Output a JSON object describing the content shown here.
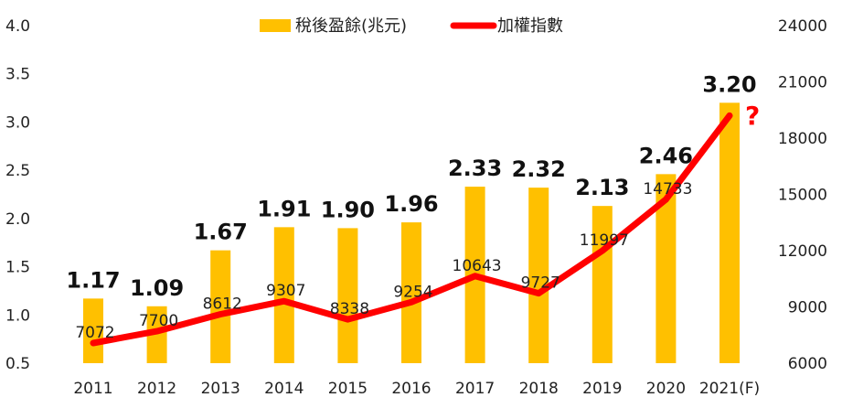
{
  "chart_data": {
    "type": "bar+line",
    "categories": [
      "2011",
      "2012",
      "2013",
      "2014",
      "2015",
      "2016",
      "2017",
      "2018",
      "2019",
      "2020",
      "2021(F)"
    ],
    "series": [
      {
        "name": "稅後盈餘(兆元)",
        "type": "bar",
        "axis": "left",
        "color": "#FFC000",
        "values": [
          1.17,
          1.09,
          1.67,
          1.91,
          1.9,
          1.96,
          2.33,
          2.32,
          2.13,
          2.46,
          3.2
        ],
        "labels": [
          "1.17",
          "1.09",
          "1.67",
          "1.91",
          "1.90",
          "1.96",
          "2.33",
          "2.32",
          "2.13",
          "2.46",
          "3.20"
        ]
      },
      {
        "name": "加權指數",
        "type": "line",
        "axis": "right",
        "color": "#FF0000",
        "values": [
          7072,
          7700,
          8612,
          9307,
          8338,
          9254,
          10643,
          9727,
          11997,
          14733,
          19200
        ],
        "labels": [
          "7072",
          "7700",
          "8612",
          "9307",
          "8338",
          "9254",
          "10643",
          "9727",
          "11997",
          "14733",
          ""
        ]
      }
    ],
    "annotation": {
      "text": "?",
      "color": "#FF0000"
    },
    "left_axis": {
      "ylim": [
        0.5,
        4.0
      ],
      "ticks": [
        "0.5",
        "1.0",
        "1.5",
        "2.0",
        "2.5",
        "3.0",
        "3.5",
        "4.0"
      ]
    },
    "right_axis": {
      "ylim": [
        6000,
        24000
      ],
      "ticks": [
        "6000",
        "9000",
        "12000",
        "15000",
        "18000",
        "21000",
        "24000"
      ]
    },
    "legend_position": "top-center",
    "grid": false
  }
}
